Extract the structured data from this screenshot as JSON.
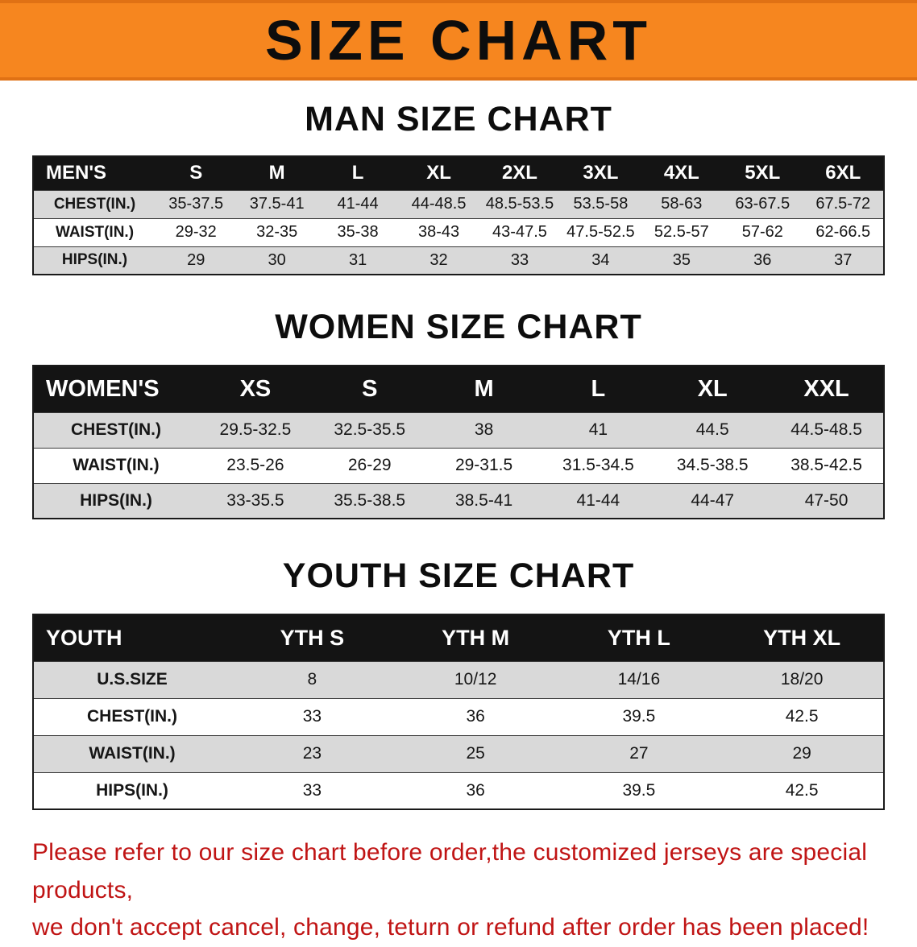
{
  "banner": {
    "title": "SIZE CHART"
  },
  "sections": [
    {
      "heading": "MAN SIZE CHART",
      "table": {
        "header": [
          "MEN'S",
          "S",
          "M",
          "L",
          "XL",
          "2XL",
          "3XL",
          "4XL",
          "5XL",
          "6XL"
        ],
        "rows": [
          [
            "CHEST(IN.)",
            "35-37.5",
            "37.5-41",
            "41-44",
            "44-48.5",
            "48.5-53.5",
            "53.5-58",
            "58-63",
            "63-67.5",
            "67.5-72"
          ],
          [
            "WAIST(IN.)",
            "29-32",
            "32-35",
            "35-38",
            "38-43",
            "43-47.5",
            "47.5-52.5",
            "52.5-57",
            "57-62",
            "62-66.5"
          ],
          [
            "HIPS(IN.)",
            "29",
            "30",
            "31",
            "32",
            "33",
            "34",
            "35",
            "36",
            "37"
          ]
        ]
      }
    },
    {
      "heading": "WOMEN SIZE CHART",
      "table": {
        "header": [
          "WOMEN'S",
          "XS",
          "S",
          "M",
          "L",
          "XL",
          "XXL"
        ],
        "rows": [
          [
            "CHEST(IN.)",
            "29.5-32.5",
            "32.5-35.5",
            "38",
            "41",
            "44.5",
            "44.5-48.5"
          ],
          [
            "WAIST(IN.)",
            "23.5-26",
            "26-29",
            "29-31.5",
            "31.5-34.5",
            "34.5-38.5",
            "38.5-42.5"
          ],
          [
            "HIPS(IN.)",
            "33-35.5",
            "35.5-38.5",
            "38.5-41",
            "41-44",
            "44-47",
            "47-50"
          ]
        ]
      }
    },
    {
      "heading": "YOUTH SIZE CHART",
      "table": {
        "header": [
          "YOUTH",
          "YTH S",
          "YTH M",
          "YTH L",
          "YTH XL"
        ],
        "rows": [
          [
            "U.S.SIZE",
            "8",
            "10/12",
            "14/16",
            "18/20"
          ],
          [
            "CHEST(IN.)",
            "33",
            "36",
            "39.5",
            "42.5"
          ],
          [
            "WAIST(IN.)",
            "23",
            "25",
            "27",
            "29"
          ],
          [
            "HIPS(IN.)",
            "33",
            "36",
            "39.5",
            "42.5"
          ]
        ]
      }
    }
  ],
  "disclaimer": {
    "line1": "Please refer to our size chart before order,the customized jerseys are special products,",
    "line2": "we don't accept cancel, change, teturn or refund after order has been placed!"
  },
  "colors": {
    "banner_bg": "#f6861f",
    "table_header_bg": "#141414",
    "row_stripe": "#d9d9d9",
    "disclaimer_text": "#c01414"
  }
}
